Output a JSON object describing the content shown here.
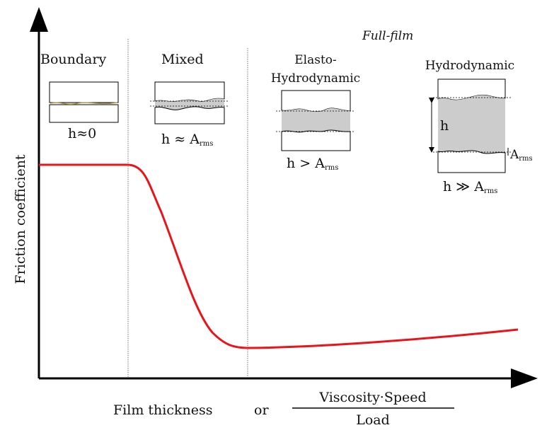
{
  "axes": {
    "y_label": "Friction coefficient",
    "x_label_main": "Film thickness",
    "x_label_or": "or",
    "x_fraction_numerator": "Viscosity·Speed",
    "x_fraction_denominator": "Load"
  },
  "regimes": {
    "boundary": {
      "title": "Boundary",
      "condition": "h≈0"
    },
    "mixed": {
      "title": "Mixed",
      "condition_prefix": "h ≈ A",
      "condition_sub": "rms"
    },
    "full_film": {
      "title_prefix": "Full-",
      "title_emph": "film",
      "ehl": {
        "title_line1": "Elasto-",
        "title_line2": "Hydrodynamic",
        "condition_prefix": "h > A",
        "condition_sub": "rms"
      },
      "hydrodynamic": {
        "title": "Hydrodynamic",
        "gap_label": "h",
        "roughness_label": "A",
        "roughness_sub": "rms",
        "condition_prefix": "h ≫ A",
        "condition_sub": "rms"
      }
    }
  },
  "colors": {
    "curve": "#e8141a",
    "fluid": "#cccccc",
    "contact_line": "#a89a4e",
    "axis": "#000000",
    "divider": "#555555"
  }
}
